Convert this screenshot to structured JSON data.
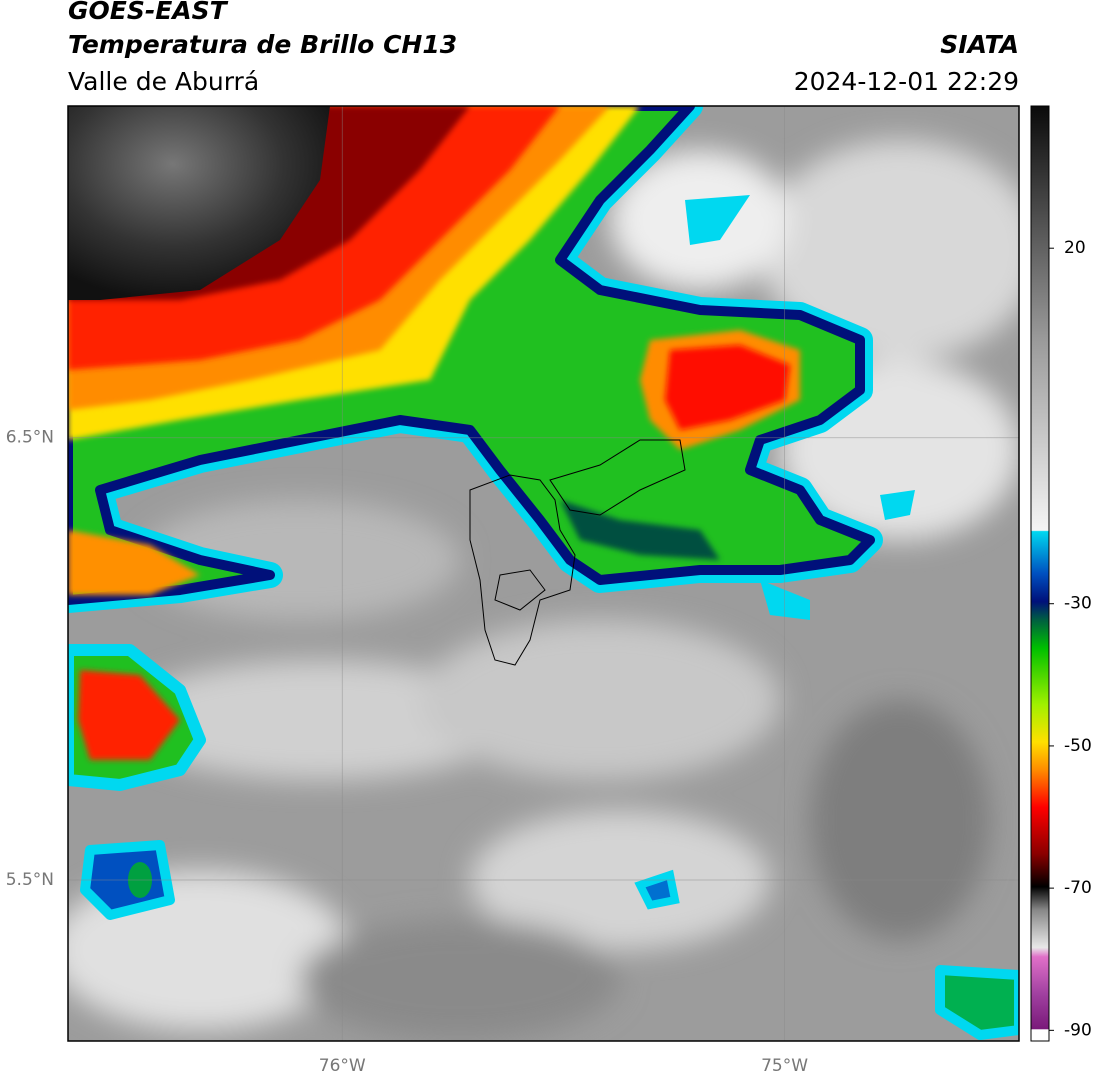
{
  "header": {
    "title": "GOES-EAST",
    "subtitle": "Temperatura de Brillo CH13",
    "region": "Valle de Aburrá",
    "source": "SIATA",
    "datetime": "2024-12-01 22:29"
  },
  "map": {
    "lat_range": [
      5.136,
      7.25
    ],
    "lon_range": [
      -76.62,
      -74.47
    ],
    "lat_ticks": [
      {
        "value": 6.5,
        "label": "6.5°N"
      },
      {
        "value": 5.5,
        "label": "5.5°N"
      }
    ],
    "lon_ticks": [
      {
        "value": -76,
        "label": "76°W"
      },
      {
        "value": -75,
        "label": "75°W"
      }
    ],
    "grid": true
  },
  "colorbar": {
    "range": [
      -91.5,
      40
    ],
    "ticks": [
      20,
      -30,
      -50,
      -70,
      -90
    ]
  }
}
